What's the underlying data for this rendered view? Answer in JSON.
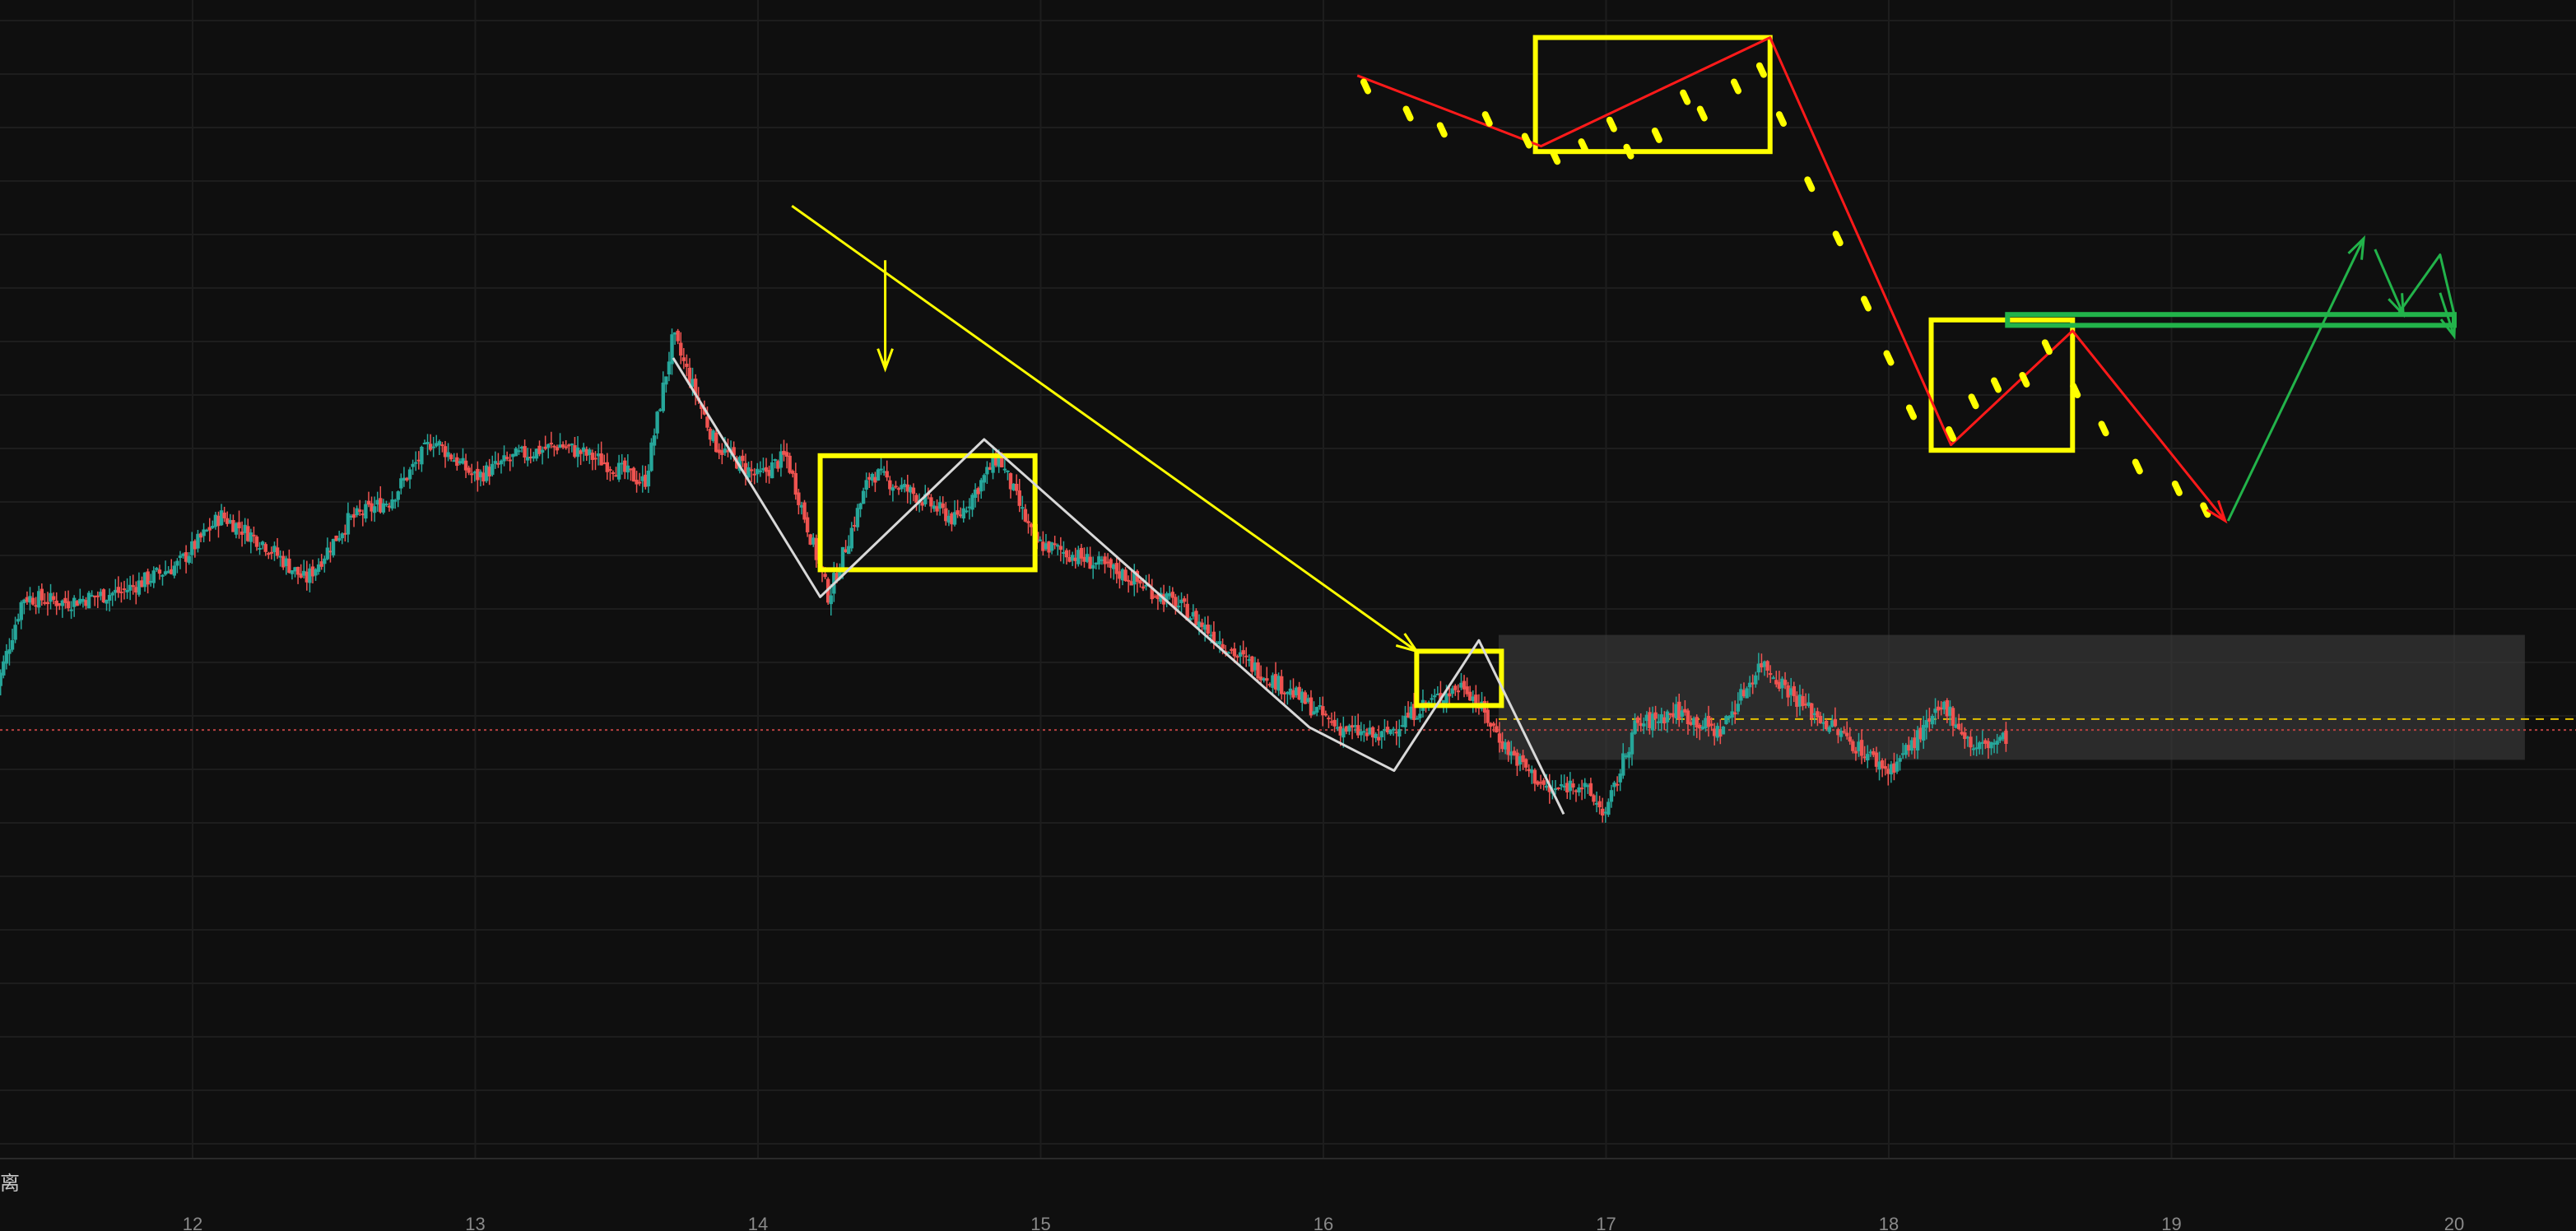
{
  "pane": {
    "corner_label": "离"
  },
  "colors": {
    "background": "#0f0f0f",
    "grid": "#1d1d1d",
    "up_candle": "#26a69a",
    "down_candle": "#ef5350",
    "annotation_yellow": "#ffff00",
    "annotation_red": "#ff1a1a",
    "annotation_green": "#22b34a",
    "annotation_white": "#d8d8d8",
    "range_box": "#3a3a3a",
    "price_line": "#b84040",
    "dashed_level": "#e6c200"
  },
  "chart_data": {
    "type": "candlestick",
    "x_ticks": [
      "12",
      "13",
      "14",
      "15",
      "16",
      "17",
      "18",
      "19",
      "20"
    ],
    "y_labels_visible": false,
    "grid": true,
    "x_domain": [
      11.3,
      20.45
    ],
    "y_domain_relative": [
      0,
      100
    ],
    "close_path": [
      [
        11.3,
        38
      ],
      [
        11.4,
        56
      ],
      [
        11.55,
        55
      ],
      [
        11.75,
        57
      ],
      [
        11.95,
        62
      ],
      [
        12.1,
        71
      ],
      [
        12.25,
        66
      ],
      [
        12.4,
        59
      ],
      [
        12.55,
        70
      ],
      [
        12.7,
        74
      ],
      [
        12.85,
        85
      ],
      [
        13.0,
        78
      ],
      [
        13.15,
        82
      ],
      [
        13.3,
        84
      ],
      [
        13.45,
        81
      ],
      [
        13.6,
        77
      ],
      [
        13.7,
        104
      ],
      [
        13.85,
        84
      ],
      [
        14.0,
        78
      ],
      [
        14.1,
        82
      ],
      [
        14.25,
        56
      ],
      [
        14.4,
        79
      ],
      [
        14.55,
        75
      ],
      [
        14.7,
        70
      ],
      [
        14.85,
        82
      ],
      [
        14.98,
        66
      ],
      [
        15.1,
        64
      ],
      [
        15.3,
        60
      ],
      [
        15.5,
        54
      ],
      [
        15.7,
        45
      ],
      [
        15.9,
        38
      ],
      [
        16.05,
        32
      ],
      [
        16.2,
        30
      ],
      [
        16.35,
        36
      ],
      [
        16.5,
        40
      ],
      [
        16.65,
        28
      ],
      [
        16.8,
        20
      ],
      [
        16.9,
        22
      ],
      [
        17.0,
        16
      ],
      [
        17.1,
        32
      ],
      [
        17.25,
        35
      ],
      [
        17.4,
        31
      ],
      [
        17.55,
        44
      ],
      [
        17.7,
        36
      ],
      [
        17.85,
        30
      ],
      [
        18.0,
        24
      ],
      [
        18.1,
        30
      ],
      [
        18.2,
        36
      ],
      [
        18.3,
        28
      ],
      [
        18.42,
        30
      ]
    ],
    "current_price_level_relative": 31.5,
    "dashed_level_relative": 33.5,
    "annotations": [
      {
        "kind": "box",
        "color": "yellow",
        "x": [
          14.22,
          14.98
        ],
        "y": [
          61,
          82
        ]
      },
      {
        "kind": "box",
        "color": "yellow",
        "x": [
          16.33,
          16.63
        ],
        "y": [
          36,
          46
        ]
      },
      {
        "kind": "box",
        "color": "yellow",
        "x": [
          16.75,
          17.58
        ],
        "y": [
          138,
          159
        ]
      },
      {
        "kind": "box",
        "color": "yellow",
        "x": [
          18.15,
          18.65
        ],
        "y": [
          83,
          107
        ]
      },
      {
        "kind": "box",
        "color": "green",
        "x": [
          18.42,
          20.0
        ],
        "y": [
          106,
          108
        ]
      },
      {
        "kind": "range",
        "color": "grey",
        "x": [
          16.62,
          20.25
        ],
        "y": [
          26,
          49
        ]
      },
      {
        "kind": "arrow",
        "color": "yellow",
        "from": [
          14.45,
          118
        ],
        "to": [
          14.45,
          98
        ]
      },
      {
        "kind": "arrow",
        "color": "yellow",
        "from": [
          14.12,
          128
        ],
        "to": [
          16.33,
          46
        ]
      },
      {
        "kind": "zigzag",
        "color": "white",
        "points": [
          [
            13.7,
            100
          ],
          [
            14.22,
            56
          ],
          [
            14.8,
            85
          ],
          [
            15.95,
            32
          ],
          [
            16.25,
            24
          ],
          [
            16.55,
            48
          ],
          [
            16.85,
            16
          ]
        ]
      },
      {
        "kind": "zigzag",
        "color": "red",
        "points": [
          [
            16.12,
            152
          ],
          [
            16.77,
            139
          ],
          [
            17.58,
            159
          ],
          [
            18.22,
            84
          ],
          [
            18.65,
            105
          ],
          [
            19.19,
            70
          ]
        ]
      },
      {
        "kind": "dots",
        "color": "yellow",
        "points": [
          [
            16.15,
            150
          ],
          [
            16.3,
            145
          ],
          [
            16.42,
            142
          ],
          [
            16.58,
            144
          ],
          [
            16.72,
            140
          ],
          [
            16.82,
            137
          ],
          [
            16.92,
            139
          ],
          [
            17.02,
            143
          ],
          [
            17.08,
            138
          ],
          [
            17.18,
            141
          ],
          [
            17.28,
            148
          ],
          [
            17.34,
            145
          ],
          [
            17.46,
            150
          ],
          [
            17.55,
            153
          ],
          [
            17.62,
            144
          ],
          [
            17.72,
            132
          ],
          [
            17.82,
            122
          ],
          [
            17.92,
            110
          ],
          [
            18.0,
            100
          ],
          [
            18.08,
            90
          ],
          [
            18.22,
            86
          ],
          [
            18.3,
            92
          ],
          [
            18.38,
            95
          ],
          [
            18.48,
            96
          ],
          [
            18.56,
            102
          ],
          [
            18.66,
            94
          ],
          [
            18.76,
            87
          ],
          [
            18.88,
            80
          ],
          [
            19.02,
            76
          ],
          [
            19.12,
            72
          ]
        ]
      },
      {
        "kind": "arrow",
        "color": "green",
        "from": [
          19.2,
          70
        ],
        "to": [
          19.68,
          122
        ]
      },
      {
        "kind": "arrow",
        "color": "green",
        "from": [
          19.72,
          120
        ],
        "to": [
          19.82,
          108
        ]
      },
      {
        "kind": "arrow",
        "color": "green",
        "from": [
          19.95,
          112
        ],
        "to": [
          20.0,
          104
        ]
      },
      {
        "kind": "zigzag",
        "color": "green",
        "points": [
          [
            19.8,
            108
          ],
          [
            19.95,
            119
          ],
          [
            20.0,
            108
          ]
        ]
      }
    ]
  }
}
